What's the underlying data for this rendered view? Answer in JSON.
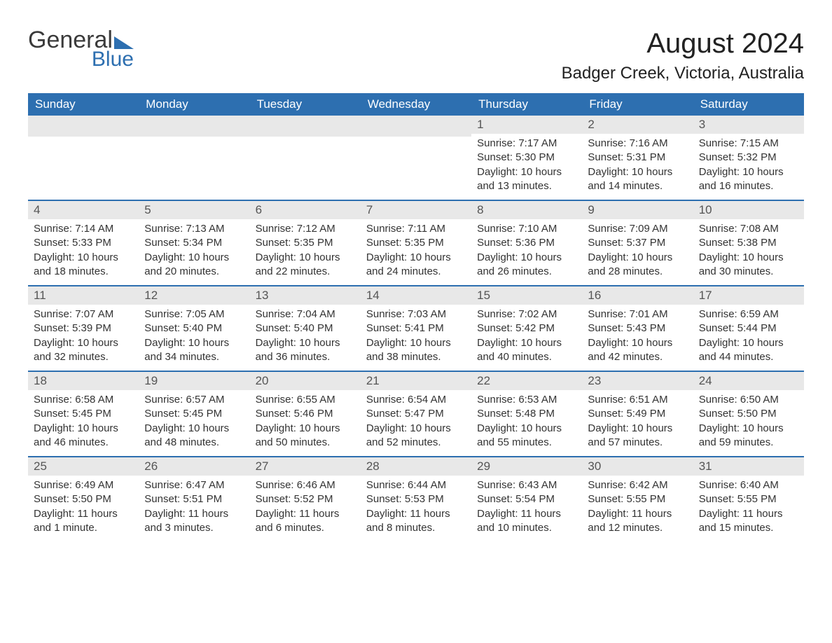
{
  "brand": {
    "word1": "General",
    "word2": "Blue"
  },
  "title": "August 2024",
  "location": "Badger Creek, Victoria, Australia",
  "colors": {
    "header_bg": "#2d6fb0",
    "header_text": "#ffffff",
    "daynum_bg": "#e8e8e8",
    "row_border": "#2d6fb0",
    "body_text": "#333333",
    "page_bg": "#ffffff"
  },
  "fonts": {
    "title_size": 40,
    "location_size": 24,
    "th_size": 17,
    "cell_size": 15
  },
  "weekdays": [
    "Sunday",
    "Monday",
    "Tuesday",
    "Wednesday",
    "Thursday",
    "Friday",
    "Saturday"
  ],
  "leading_blanks": 4,
  "days": [
    {
      "n": 1,
      "sunrise": "7:17 AM",
      "sunset": "5:30 PM",
      "daylight": "10 hours and 13 minutes."
    },
    {
      "n": 2,
      "sunrise": "7:16 AM",
      "sunset": "5:31 PM",
      "daylight": "10 hours and 14 minutes."
    },
    {
      "n": 3,
      "sunrise": "7:15 AM",
      "sunset": "5:32 PM",
      "daylight": "10 hours and 16 minutes."
    },
    {
      "n": 4,
      "sunrise": "7:14 AM",
      "sunset": "5:33 PM",
      "daylight": "10 hours and 18 minutes."
    },
    {
      "n": 5,
      "sunrise": "7:13 AM",
      "sunset": "5:34 PM",
      "daylight": "10 hours and 20 minutes."
    },
    {
      "n": 6,
      "sunrise": "7:12 AM",
      "sunset": "5:35 PM",
      "daylight": "10 hours and 22 minutes."
    },
    {
      "n": 7,
      "sunrise": "7:11 AM",
      "sunset": "5:35 PM",
      "daylight": "10 hours and 24 minutes."
    },
    {
      "n": 8,
      "sunrise": "7:10 AM",
      "sunset": "5:36 PM",
      "daylight": "10 hours and 26 minutes."
    },
    {
      "n": 9,
      "sunrise": "7:09 AM",
      "sunset": "5:37 PM",
      "daylight": "10 hours and 28 minutes."
    },
    {
      "n": 10,
      "sunrise": "7:08 AM",
      "sunset": "5:38 PM",
      "daylight": "10 hours and 30 minutes."
    },
    {
      "n": 11,
      "sunrise": "7:07 AM",
      "sunset": "5:39 PM",
      "daylight": "10 hours and 32 minutes."
    },
    {
      "n": 12,
      "sunrise": "7:05 AM",
      "sunset": "5:40 PM",
      "daylight": "10 hours and 34 minutes."
    },
    {
      "n": 13,
      "sunrise": "7:04 AM",
      "sunset": "5:40 PM",
      "daylight": "10 hours and 36 minutes."
    },
    {
      "n": 14,
      "sunrise": "7:03 AM",
      "sunset": "5:41 PM",
      "daylight": "10 hours and 38 minutes."
    },
    {
      "n": 15,
      "sunrise": "7:02 AM",
      "sunset": "5:42 PM",
      "daylight": "10 hours and 40 minutes."
    },
    {
      "n": 16,
      "sunrise": "7:01 AM",
      "sunset": "5:43 PM",
      "daylight": "10 hours and 42 minutes."
    },
    {
      "n": 17,
      "sunrise": "6:59 AM",
      "sunset": "5:44 PM",
      "daylight": "10 hours and 44 minutes."
    },
    {
      "n": 18,
      "sunrise": "6:58 AM",
      "sunset": "5:45 PM",
      "daylight": "10 hours and 46 minutes."
    },
    {
      "n": 19,
      "sunrise": "6:57 AM",
      "sunset": "5:45 PM",
      "daylight": "10 hours and 48 minutes."
    },
    {
      "n": 20,
      "sunrise": "6:55 AM",
      "sunset": "5:46 PM",
      "daylight": "10 hours and 50 minutes."
    },
    {
      "n": 21,
      "sunrise": "6:54 AM",
      "sunset": "5:47 PM",
      "daylight": "10 hours and 52 minutes."
    },
    {
      "n": 22,
      "sunrise": "6:53 AM",
      "sunset": "5:48 PM",
      "daylight": "10 hours and 55 minutes."
    },
    {
      "n": 23,
      "sunrise": "6:51 AM",
      "sunset": "5:49 PM",
      "daylight": "10 hours and 57 minutes."
    },
    {
      "n": 24,
      "sunrise": "6:50 AM",
      "sunset": "5:50 PM",
      "daylight": "10 hours and 59 minutes."
    },
    {
      "n": 25,
      "sunrise": "6:49 AM",
      "sunset": "5:50 PM",
      "daylight": "11 hours and 1 minute."
    },
    {
      "n": 26,
      "sunrise": "6:47 AM",
      "sunset": "5:51 PM",
      "daylight": "11 hours and 3 minutes."
    },
    {
      "n": 27,
      "sunrise": "6:46 AM",
      "sunset": "5:52 PM",
      "daylight": "11 hours and 6 minutes."
    },
    {
      "n": 28,
      "sunrise": "6:44 AM",
      "sunset": "5:53 PM",
      "daylight": "11 hours and 8 minutes."
    },
    {
      "n": 29,
      "sunrise": "6:43 AM",
      "sunset": "5:54 PM",
      "daylight": "11 hours and 10 minutes."
    },
    {
      "n": 30,
      "sunrise": "6:42 AM",
      "sunset": "5:55 PM",
      "daylight": "11 hours and 12 minutes."
    },
    {
      "n": 31,
      "sunrise": "6:40 AM",
      "sunset": "5:55 PM",
      "daylight": "11 hours and 15 minutes."
    }
  ],
  "labels": {
    "sunrise": "Sunrise: ",
    "sunset": "Sunset: ",
    "daylight": "Daylight: "
  }
}
